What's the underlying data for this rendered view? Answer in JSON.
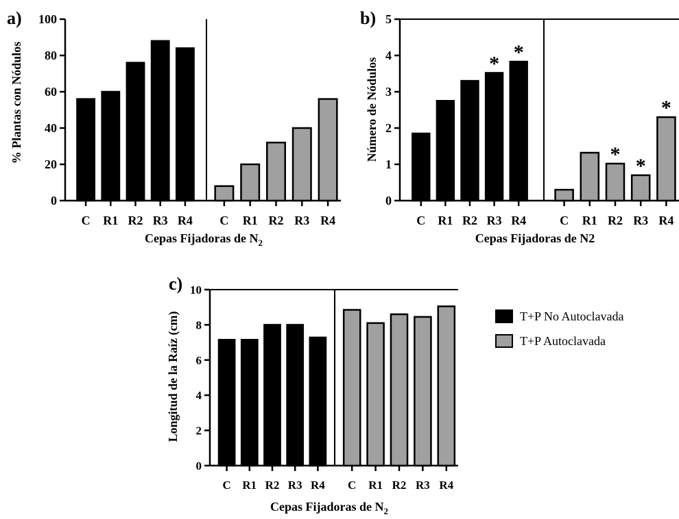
{
  "chart_data": [
    {
      "panel_label": "a)",
      "type": "bar",
      "ylabel": "% Plantas con Nódulos",
      "xlabel": "Cepas Fijadoras de N",
      "xlabel_sub": "2",
      "ylim": [
        0,
        100
      ],
      "yticks": [
        0,
        20,
        40,
        60,
        80,
        100
      ],
      "categories": [
        "C",
        "R1",
        "R2",
        "R3",
        "R4"
      ],
      "series": [
        {
          "values": [
            56,
            60,
            76,
            88,
            84
          ],
          "color": "#000000",
          "stars": [
            false,
            false,
            false,
            false,
            false
          ]
        },
        {
          "values": [
            8,
            20,
            32,
            40,
            56
          ],
          "color": "#a0a0a0",
          "stars": [
            false,
            false,
            false,
            false,
            false
          ]
        }
      ]
    },
    {
      "panel_label": "b)",
      "type": "bar",
      "ylabel": "Número de Nódulos",
      "xlabel": "Cepas Fijadoras de N2",
      "xlabel_sub": "",
      "ylim": [
        0,
        5
      ],
      "yticks": [
        0,
        1,
        2,
        3,
        4,
        5
      ],
      "categories": [
        "C",
        "R1",
        "R2",
        "R3",
        "R4"
      ],
      "series": [
        {
          "values": [
            1.85,
            2.75,
            3.3,
            3.52,
            3.83
          ],
          "color": "#000000",
          "stars": [
            false,
            false,
            false,
            true,
            true
          ]
        },
        {
          "values": [
            0.3,
            1.32,
            1.02,
            0.7,
            2.3
          ],
          "color": "#a0a0a0",
          "stars": [
            false,
            false,
            true,
            true,
            true
          ]
        }
      ]
    },
    {
      "panel_label": "c)",
      "type": "bar",
      "ylabel": "Longitud de la Raíz (cm)",
      "xlabel": "Cepas Fijadoras de N",
      "xlabel_sub": "2",
      "ylim": [
        0,
        10
      ],
      "yticks": [
        0,
        2,
        4,
        6,
        8,
        10
      ],
      "categories": [
        "C",
        "R1",
        "R2",
        "R3",
        "R4"
      ],
      "series": [
        {
          "values": [
            7.15,
            7.15,
            8.0,
            8.0,
            7.28
          ],
          "color": "#000000",
          "stars": [
            false,
            false,
            false,
            false,
            false
          ]
        },
        {
          "values": [
            8.85,
            8.1,
            8.6,
            8.45,
            9.05
          ],
          "color": "#a0a0a0",
          "stars": [
            false,
            false,
            false,
            false,
            false
          ]
        }
      ]
    }
  ],
  "legend": {
    "items": [
      {
        "label": "T+P No Autoclavada",
        "color": "#000000"
      },
      {
        "label": "T+P Autoclavada",
        "color": "#a0a0a0"
      }
    ]
  }
}
